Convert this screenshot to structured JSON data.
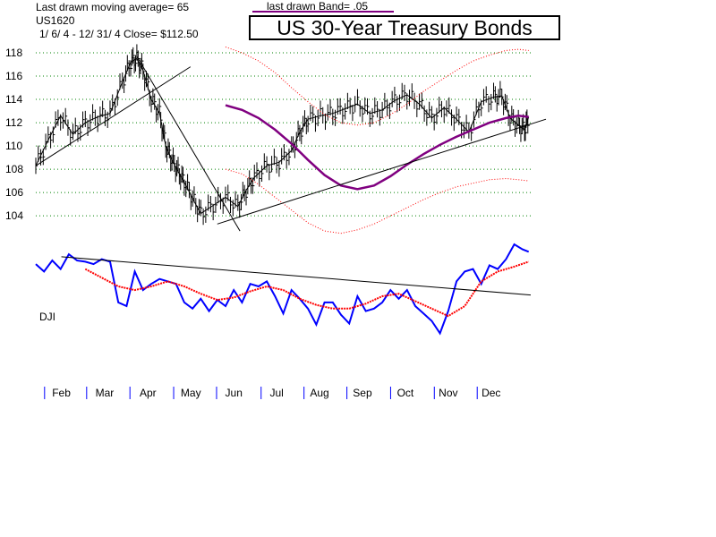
{
  "header": {
    "ma_label": "Last drawn moving average= 65",
    "symbol": "US1620",
    "range_close": "1/ 6/ 4 -  12/ 31/ 4    Close= $112.50",
    "band_label": "last drawn Band= .05",
    "title": "US 30-Year Treasury Bonds"
  },
  "colors": {
    "ma": "#800080",
    "band": "#ff0000",
    "dji": "#0000ff",
    "dji_ma": "#ff0000",
    "grid": "#008000",
    "price": "#000000"
  },
  "chart_data": [
    {
      "type": "line",
      "title": "US 30-Year Treasury Bonds",
      "ylim": [
        102.4,
        119
      ],
      "yticks": [
        "118",
        "116",
        "114",
        "112",
        "110",
        "108",
        "106",
        "104"
      ],
      "ytick_values": [
        118,
        116,
        114,
        112,
        110,
        108,
        106,
        104
      ],
      "grid": true,
      "x_range": [
        0,
        12
      ],
      "months": [
        "Feb",
        "Mar",
        "Apr",
        "May",
        "Jun",
        "Jul",
        "Aug",
        "Sep",
        "Oct",
        "Nov",
        "Dec"
      ],
      "month_positions": [
        0.62,
        1.67,
        2.72,
        3.76,
        4.8,
        5.84,
        6.88,
        7.92,
        8.96,
        10.0,
        11.04
      ],
      "series": [
        {
          "role": "price",
          "x": [
            0,
            0.3,
            0.6,
            0.9,
            1.2,
            1.5,
            1.8,
            2.1,
            2.3,
            2.45,
            2.6,
            2.8,
            3.0,
            3.15,
            3.3,
            3.45,
            3.6,
            3.8,
            4.0,
            4.3,
            4.6,
            4.9,
            5.1,
            5.3,
            5.6,
            5.9,
            6.2,
            6.4,
            6.6,
            6.9,
            7.2,
            7.5,
            7.8,
            8.1,
            8.4,
            8.7,
            9.0,
            9.3,
            9.6,
            9.9,
            10.2,
            10.5,
            10.8,
            11.1,
            11.3,
            11.5,
            11.7,
            11.85,
            11.95
          ],
          "values": [
            108.3,
            110.5,
            112.6,
            111.0,
            112.0,
            112.5,
            112.8,
            115.5,
            117.2,
            117.5,
            116.5,
            114.0,
            112.8,
            110.0,
            108.8,
            107.8,
            106.9,
            105.5,
            104.2,
            104.9,
            105.6,
            104.8,
            106.2,
            107.3,
            108.3,
            108.6,
            109.6,
            111.2,
            112.3,
            112.6,
            112.8,
            113.2,
            113.6,
            112.8,
            113.1,
            113.9,
            114.4,
            113.6,
            112.4,
            113.3,
            112.3,
            111.2,
            113.8,
            114.2,
            114.3,
            112.4,
            111.8,
            111.4,
            112.5
          ]
        },
        {
          "role": "moving-average",
          "x": [
            4.6,
            5.0,
            5.4,
            5.8,
            6.2,
            6.6,
            7.0,
            7.4,
            7.8,
            8.2,
            8.6,
            9.0,
            9.4,
            9.8,
            10.2,
            10.6,
            11.0,
            11.4,
            11.7,
            11.95
          ],
          "values": [
            113.5,
            113.1,
            112.4,
            111.4,
            110.2,
            108.8,
            107.5,
            106.6,
            106.3,
            106.6,
            107.4,
            108.4,
            109.3,
            110.1,
            110.8,
            111.4,
            112.0,
            112.4,
            112.6,
            112.5
          ]
        },
        {
          "role": "upper-band",
          "x": [
            4.6,
            5.0,
            5.4,
            5.8,
            6.2,
            6.6,
            7.0,
            7.4,
            7.8,
            8.2,
            8.6,
            9.0,
            9.4,
            9.8,
            10.2,
            10.6,
            11.0,
            11.4,
            11.7,
            11.95
          ],
          "values": [
            118.5,
            118.0,
            117.3,
            116.3,
            115.0,
            113.8,
            112.7,
            112.0,
            111.8,
            112.0,
            112.7,
            113.6,
            114.7,
            115.6,
            116.5,
            117.3,
            117.8,
            118.2,
            118.3,
            118.2
          ]
        },
        {
          "role": "lower-band",
          "x": [
            4.6,
            5.0,
            5.4,
            5.8,
            6.2,
            6.6,
            7.0,
            7.4,
            7.8,
            8.2,
            8.6,
            9.0,
            9.4,
            9.8,
            10.2,
            10.6,
            11.0,
            11.4,
            11.7,
            11.95
          ],
          "values": [
            108.0,
            107.6,
            106.7,
            105.6,
            104.5,
            103.4,
            102.7,
            102.5,
            102.8,
            103.3,
            104.0,
            104.7,
            105.4,
            106.0,
            106.5,
            106.8,
            107.1,
            107.2,
            107.1,
            107.0
          ]
        }
      ],
      "trendlines": [
        {
          "x1": 0,
          "y1": 108.3,
          "x2": 3.75,
          "y2": 116.8
        },
        {
          "x1": 2.45,
          "y1": 117.7,
          "x2": 4.95,
          "y2": 102.7
        },
        {
          "x1": 4.4,
          "y1": 103.3,
          "x2": 12.95,
          "y2": 112.3
        }
      ]
    },
    {
      "type": "line",
      "title": "DJI",
      "ylim": [
        0,
        100
      ],
      "x_range": [
        0,
        12
      ],
      "series": [
        {
          "role": "dji",
          "x": [
            0,
            0.2,
            0.4,
            0.6,
            0.8,
            1.0,
            1.2,
            1.4,
            1.6,
            1.8,
            2.0,
            2.2,
            2.4,
            2.6,
            2.8,
            3.0,
            3.2,
            3.4,
            3.6,
            3.8,
            4.0,
            4.2,
            4.4,
            4.6,
            4.8,
            5.0,
            5.2,
            5.4,
            5.6,
            5.8,
            6.0,
            6.2,
            6.4,
            6.6,
            6.8,
            7.0,
            7.2,
            7.4,
            7.6,
            7.8,
            8.0,
            8.2,
            8.4,
            8.6,
            8.8,
            9.0,
            9.2,
            9.4,
            9.6,
            9.8,
            10.0,
            10.2,
            10.4,
            10.6,
            10.8,
            11.0,
            11.2,
            11.4,
            11.6,
            11.8,
            11.95
          ],
          "values": [
            76,
            70,
            79,
            72,
            84,
            79,
            78,
            76,
            80,
            78,
            45,
            42,
            70,
            55,
            60,
            64,
            62,
            60,
            45,
            40,
            48,
            38,
            47,
            42,
            55,
            45,
            60,
            58,
            62,
            50,
            36,
            55,
            48,
            40,
            27,
            45,
            45,
            35,
            28,
            50,
            38,
            40,
            45,
            55,
            48,
            55,
            42,
            36,
            30,
            20,
            38,
            62,
            70,
            72,
            60,
            75,
            72,
            80,
            92,
            88,
            86
          ]
        },
        {
          "role": "dji-moving-average",
          "x": [
            1.2,
            1.6,
            2.0,
            2.4,
            2.8,
            3.2,
            3.6,
            4.0,
            4.4,
            4.8,
            5.2,
            5.6,
            6.0,
            6.4,
            6.8,
            7.2,
            7.6,
            8.0,
            8.4,
            8.8,
            9.2,
            9.6,
            10.0,
            10.4,
            10.8,
            11.2,
            11.6,
            11.95
          ],
          "values": [
            72,
            65,
            58,
            55,
            58,
            62,
            58,
            52,
            47,
            49,
            54,
            58,
            55,
            48,
            43,
            40,
            40,
            44,
            50,
            52,
            46,
            40,
            34,
            42,
            62,
            70,
            74,
            78
          ]
        }
      ],
      "trendlines": [
        {
          "x1": 0.62,
          "y1": 82,
          "x2": 12,
          "y2": 51
        }
      ]
    }
  ],
  "dji_label": "DJI"
}
